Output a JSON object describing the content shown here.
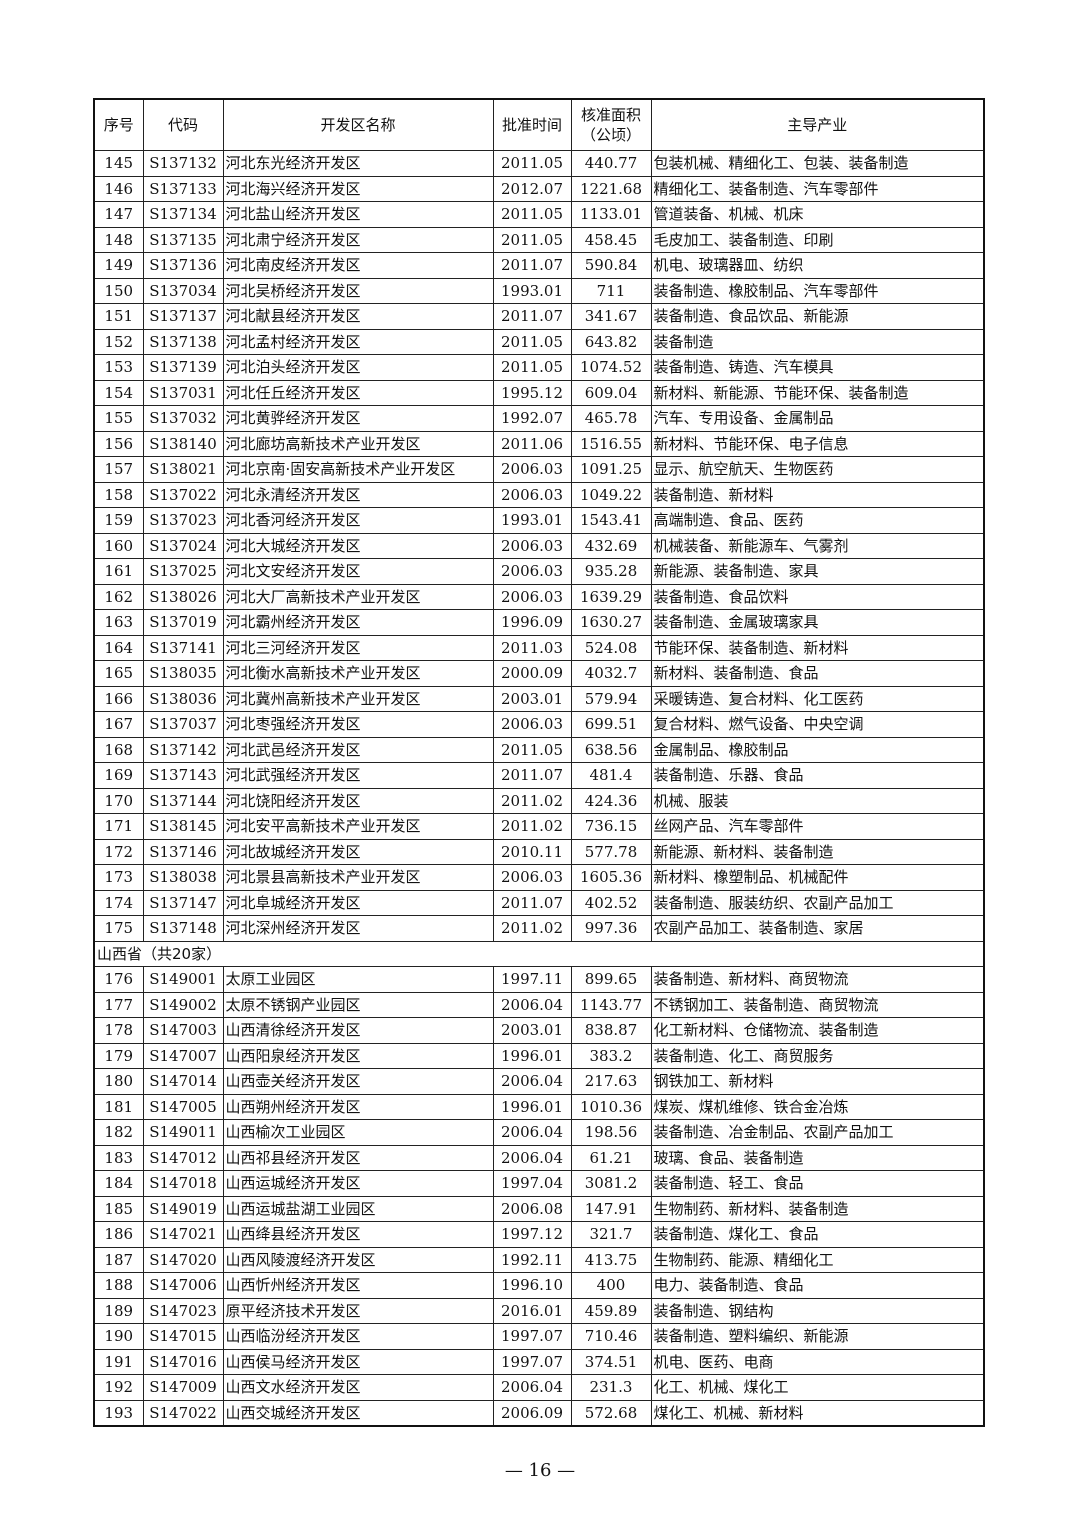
{
  "headers": [
    "序号",
    "代码",
    "开发区名称",
    "批准时间",
    "核准面积（公顷）",
    "主导产业"
  ],
  "header_area_line1": "核准面积",
  "header_area_line2": "（公顷）",
  "rows_a": [
    [
      "145",
      "S137132",
      "河北东光经济开发区",
      "2011.05",
      "440.77",
      "包装机械、精细化工、包装、装备制造"
    ],
    [
      "146",
      "S137133",
      "河北海兴经济开发区",
      "2012.07",
      "1221.68",
      "精细化工、装备制造、汽车零部件"
    ],
    [
      "147",
      "S137134",
      "河北盐山经济开发区",
      "2011.05",
      "1133.01",
      "管道装备、机械、机床"
    ],
    [
      "148",
      "S137135",
      "河北肃宁经济开发区",
      "2011.05",
      "458.45",
      "毛皮加工、装备制造、印刷"
    ],
    [
      "149",
      "S137136",
      "河北南皮经济开发区",
      "2011.07",
      "590.84",
      "机电、玻璃器皿、纺织"
    ],
    [
      "150",
      "S137034",
      "河北吴桥经济开发区",
      "1993.01",
      "711",
      "装备制造、橡胶制品、汽车零部件"
    ],
    [
      "151",
      "S137137",
      "河北献县经济开发区",
      "2011.07",
      "341.67",
      "装备制造、食品饮品、新能源"
    ],
    [
      "152",
      "S137138",
      "河北孟村经济开发区",
      "2011.05",
      "643.82",
      "装备制造"
    ],
    [
      "153",
      "S137139",
      "河北泊头经济开发区",
      "2011.05",
      "1074.52",
      "装备制造、铸造、汽车模具"
    ],
    [
      "154",
      "S137031",
      "河北任丘经济开发区",
      "1995.12",
      "609.04",
      "新材料、新能源、节能环保、装备制造"
    ],
    [
      "155",
      "S137032",
      "河北黄骅经济开发区",
      "1992.07",
      "465.78",
      "汽车、专用设备、金属制品"
    ],
    [
      "156",
      "S138140",
      "河北廊坊高新技术产业开发区",
      "2011.06",
      "1516.55",
      "新材料、节能环保、电子信息"
    ],
    [
      "157",
      "S138021",
      "河北京南·固安高新技术产业开发区",
      "2006.03",
      "1091.25",
      "显示、航空航天、生物医药"
    ],
    [
      "158",
      "S137022",
      "河北永清经济开发区",
      "2006.03",
      "1049.22",
      "装备制造、新材料"
    ],
    [
      "159",
      "S137023",
      "河北香河经济开发区",
      "1993.01",
      "1543.41",
      "高端制造、食品、医药"
    ],
    [
      "160",
      "S137024",
      "河北大城经济开发区",
      "2006.03",
      "432.69",
      "机械装备、新能源车、气雾剂"
    ],
    [
      "161",
      "S137025",
      "河北文安经济开发区",
      "2006.03",
      "935.28",
      "新能源、装备制造、家具"
    ],
    [
      "162",
      "S138026",
      "河北大厂高新技术产业开发区",
      "2006.03",
      "1639.29",
      "装备制造、食品饮料"
    ],
    [
      "163",
      "S137019",
      "河北霸州经济开发区",
      "1996.09",
      "1630.27",
      "装备制造、金属玻璃家具"
    ],
    [
      "164",
      "S137141",
      "河北三河经济开发区",
      "2011.03",
      "524.08",
      "节能环保、装备制造、新材料"
    ],
    [
      "165",
      "S138035",
      "河北衡水高新技术产业开发区",
      "2000.09",
      "4032.7",
      "新材料、装备制造、食品"
    ],
    [
      "166",
      "S138036",
      "河北冀州高新技术产业开发区",
      "2003.01",
      "579.94",
      "采暖铸造、复合材料、化工医药"
    ],
    [
      "167",
      "S137037",
      "河北枣强经济开发区",
      "2006.03",
      "699.51",
      "复合材料、燃气设备、中央空调"
    ],
    [
      "168",
      "S137142",
      "河北武邑经济开发区",
      "2011.05",
      "638.56",
      "金属制品、橡胶制品"
    ],
    [
      "169",
      "S137143",
      "河北武强经济开发区",
      "2011.07",
      "481.4",
      "装备制造、乐器、食品"
    ],
    [
      "170",
      "S137144",
      "河北饶阳经济开发区",
      "2011.02",
      "424.36",
      "机械、服装"
    ],
    [
      "171",
      "S138145",
      "河北安平高新技术产业开发区",
      "2011.02",
      "736.15",
      "丝网产品、汽车零部件"
    ],
    [
      "172",
      "S137146",
      "河北故城经济开发区",
      "2010.11",
      "577.78",
      "新能源、新材料、装备制造"
    ],
    [
      "173",
      "S138038",
      "河北景县高新技术产业开发区",
      "2006.03",
      "1605.36",
      "新材料、橡塑制品、机械配件"
    ],
    [
      "174",
      "S137147",
      "河北阜城经济开发区",
      "2011.07",
      "402.52",
      "装备制造、服装纺织、农副产品加工"
    ],
    [
      "175",
      "S137148",
      "河北深州经济开发区",
      "2011.02",
      "997.36",
      "农副产品加工、装备制造、家居"
    ]
  ],
  "province_label": "山西省（共20家）",
  "rows_b": [
    [
      "176",
      "S149001",
      "太原工业园区",
      "1997.11",
      "899.65",
      "装备制造、新材料、商贸物流"
    ],
    [
      "177",
      "S149002",
      "太原不锈钢产业园区",
      "2006.04",
      "1143.77",
      "不锈钢加工、装备制造、商贸物流"
    ],
    [
      "178",
      "S147003",
      "山西清徐经济开发区",
      "2003.01",
      "838.87",
      "化工新材料、仓储物流、装备制造"
    ],
    [
      "179",
      "S147007",
      "山西阳泉经济开发区",
      "1996.01",
      "383.2",
      "装备制造、化工、商贸服务"
    ],
    [
      "180",
      "S147014",
      "山西壶关经济开发区",
      "2006.04",
      "217.63",
      "钢铁加工、新材料"
    ],
    [
      "181",
      "S147005",
      "山西朔州经济开发区",
      "1996.01",
      "1010.36",
      "煤炭、煤机维修、铁合金冶炼"
    ],
    [
      "182",
      "S149011",
      "山西榆次工业园区",
      "2006.04",
      "198.56",
      "装备制造、冶金制品、农副产品加工"
    ],
    [
      "183",
      "S147012",
      "山西祁县经济开发区",
      "2006.04",
      "61.21",
      "玻璃、食品、装备制造"
    ],
    [
      "184",
      "S147018",
      "山西运城经济开发区",
      "1997.04",
      "3081.2",
      "装备制造、轻工、食品"
    ],
    [
      "185",
      "S149019",
      "山西运城盐湖工业园区",
      "2006.08",
      "147.91",
      "生物制药、新材料、装备制造"
    ],
    [
      "186",
      "S147021",
      "山西绛县经济开发区",
      "1997.12",
      "321.7",
      "装备制造、煤化工、食品"
    ],
    [
      "187",
      "S147020",
      "山西风陵渡经济开发区",
      "1992.11",
      "413.75",
      "生物制药、能源、精细化工"
    ],
    [
      "188",
      "S147006",
      "山西忻州经济开发区",
      "1996.10",
      "400",
      "电力、装备制造、食品"
    ],
    [
      "189",
      "S147023",
      "原平经济技术开发区",
      "2016.01",
      "459.89",
      "装备制造、钢结构"
    ],
    [
      "190",
      "S147015",
      "山西临汾经济开发区",
      "1997.07",
      "710.46",
      "装备制造、塑料编织、新能源"
    ],
    [
      "191",
      "S147016",
      "山西侯马经济开发区",
      "1997.07",
      "374.51",
      "机电、医药、电商"
    ],
    [
      "192",
      "S147009",
      "山西文水经济开发区",
      "2006.04",
      "231.3",
      "化工、机械、煤化工"
    ],
    [
      "193",
      "S147022",
      "山西交城经济开发区",
      "2006.09",
      "572.68",
      "煤化工、机械、新材料"
    ]
  ],
  "page_number": "— 16 —"
}
